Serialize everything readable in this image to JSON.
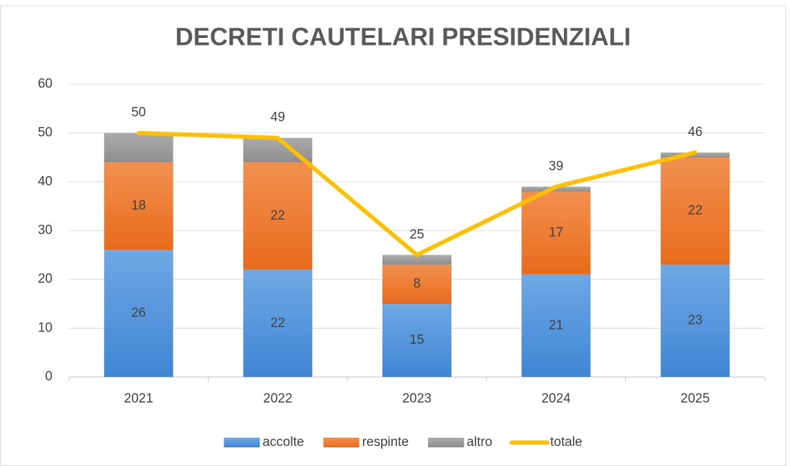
{
  "chart_data": {
    "type": "bar",
    "stacked": true,
    "title": "DECRETI CAUTELARI PRESIDENZIALI",
    "categories": [
      "2021",
      "2022",
      "2023",
      "2024",
      "2025"
    ],
    "series": [
      {
        "name": "accolte",
        "color": "#4a8fd8",
        "values": [
          26,
          22,
          15,
          21,
          23
        ],
        "show_labels": true
      },
      {
        "name": "respinte",
        "color": "#ee7a2e",
        "values": [
          18,
          22,
          8,
          17,
          22
        ],
        "show_labels": true
      },
      {
        "name": "altro",
        "color": "#9e9e9e",
        "values": [
          6,
          5,
          2,
          1,
          1
        ],
        "show_labels": false
      },
      {
        "name": "totale",
        "type": "line",
        "color": "#ffc000",
        "values": [
          50,
          49,
          25,
          39,
          46
        ],
        "show_labels": true
      }
    ],
    "ylim": [
      0,
      60
    ],
    "yticks": [
      0,
      10,
      20,
      30,
      40,
      50,
      60
    ],
    "grid": true,
    "legend": "bottom"
  }
}
